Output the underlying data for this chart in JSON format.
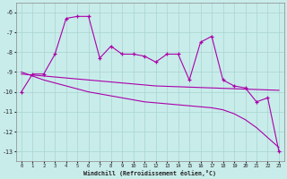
{
  "xlabel": "Windchill (Refroidissement éolien,°C)",
  "background_color": "#c8ecea",
  "grid_color": "#a8d4d0",
  "line_color": "#aa00aa",
  "x_values": [
    0,
    1,
    2,
    3,
    4,
    5,
    6,
    7,
    8,
    9,
    10,
    11,
    12,
    13,
    14,
    15,
    16,
    17,
    18,
    19,
    20,
    21,
    22,
    23
  ],
  "main_line": [
    -10.0,
    -9.1,
    -9.1,
    -8.1,
    -6.3,
    -6.2,
    -6.2,
    -8.3,
    -7.7,
    -8.1,
    -8.1,
    -8.2,
    -8.5,
    -8.1,
    -8.1,
    -9.4,
    -7.5,
    -7.2,
    -9.4,
    -9.7,
    -9.8,
    -10.5,
    -10.3,
    -13.0
  ],
  "trend_flat": [
    -9.1,
    -9.15,
    -9.2,
    -9.25,
    -9.3,
    -9.35,
    -9.4,
    -9.45,
    -9.5,
    -9.55,
    -9.6,
    -9.65,
    -9.7,
    -9.72,
    -9.74,
    -9.76,
    -9.78,
    -9.8,
    -9.82,
    -9.84,
    -9.86,
    -9.88,
    -9.9,
    -9.92
  ],
  "trend_steep": [
    -9.0,
    -9.2,
    -9.4,
    -9.55,
    -9.7,
    -9.85,
    -10.0,
    -10.1,
    -10.2,
    -10.3,
    -10.4,
    -10.5,
    -10.55,
    -10.6,
    -10.65,
    -10.7,
    -10.75,
    -10.8,
    -10.9,
    -11.1,
    -11.4,
    -11.8,
    -12.3,
    -12.8
  ],
  "ylim": [
    -13.5,
    -5.5
  ],
  "xlim": [
    -0.5,
    23.5
  ],
  "yticks": [
    -13,
    -12,
    -11,
    -10,
    -9,
    -8,
    -7,
    -6
  ],
  "xticks": [
    0,
    1,
    2,
    3,
    4,
    5,
    6,
    7,
    8,
    9,
    10,
    11,
    12,
    13,
    14,
    15,
    16,
    17,
    18,
    19,
    20,
    21,
    22,
    23
  ]
}
